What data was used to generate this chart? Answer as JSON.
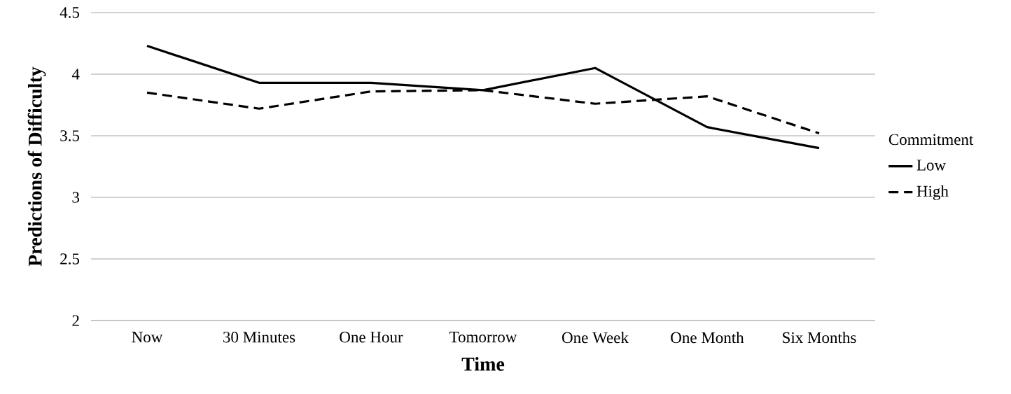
{
  "chart_data": {
    "type": "line",
    "xlabel": "Time",
    "ylabel": "Predictions of Difficulty",
    "legend_title": "Commitment",
    "categories": [
      "Now",
      "30 Minutes",
      "One Hour",
      "Tomorrow",
      "One Week",
      "One Month",
      "Six Months"
    ],
    "series": [
      {
        "name": "Low",
        "color": "#000000",
        "line_style": "solid",
        "values": [
          4.23,
          3.93,
          3.93,
          3.87,
          4.05,
          3.57,
          3.4
        ]
      },
      {
        "name": "High",
        "color": "#000000",
        "line_style": "dashed",
        "values": [
          3.85,
          3.72,
          3.86,
          3.87,
          3.76,
          3.82,
          3.52
        ]
      }
    ],
    "ylim": [
      2,
      4.5
    ],
    "yticks": [
      2,
      2.5,
      3,
      3.5,
      4,
      4.5
    ],
    "grid": "y",
    "legend": "right",
    "marker": "none"
  }
}
